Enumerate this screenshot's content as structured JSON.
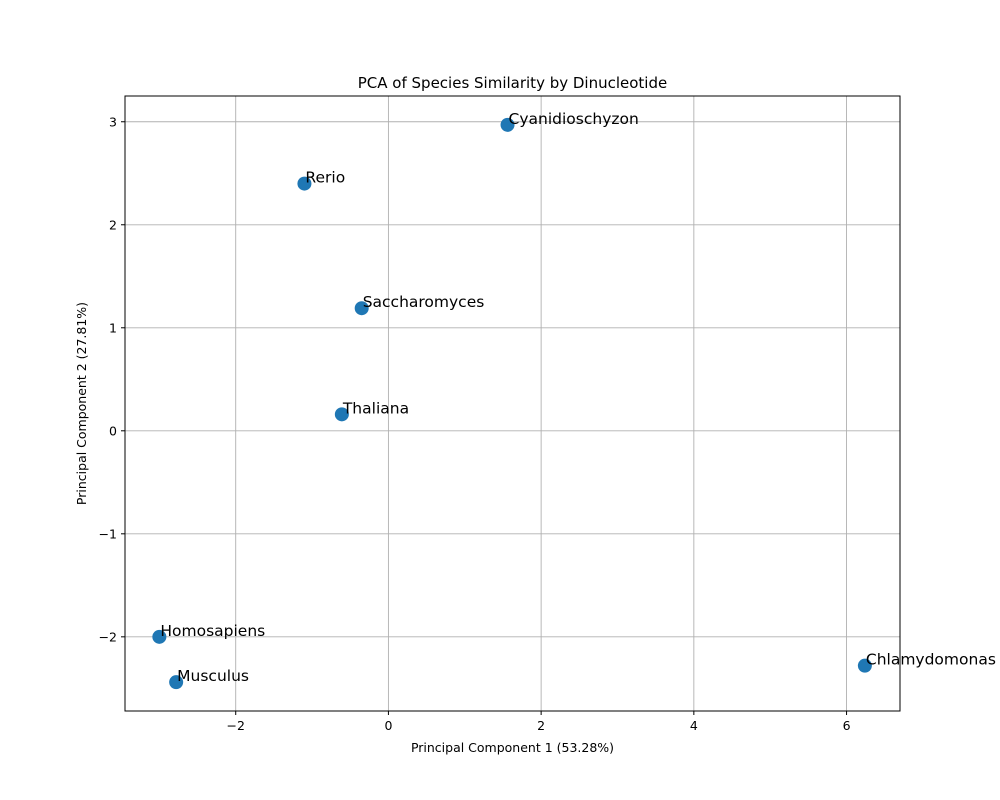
{
  "chart_data": {
    "type": "scatter",
    "title": "PCA of Species Similarity by Dinucleotide",
    "xlabel": "Principal Component 1 (53.28%)",
    "ylabel": "Principal Component 2 (27.81%)",
    "xlim": [
      -3.45,
      6.7
    ],
    "ylim": [
      -2.72,
      3.25
    ],
    "xticks": [
      -2,
      0,
      2,
      4,
      6
    ],
    "yticks": [
      -2,
      -1,
      0,
      1,
      2,
      3
    ],
    "grid": true,
    "point_color": "#1f77b4",
    "points": [
      {
        "label": "Cyanidioschyzon",
        "x": 1.56,
        "y": 2.97
      },
      {
        "label": "Rerio",
        "x": -1.1,
        "y": 2.4
      },
      {
        "label": "Saccharomyces",
        "x": -0.35,
        "y": 1.19
      },
      {
        "label": "Thaliana",
        "x": -0.61,
        "y": 0.16
      },
      {
        "label": "Homosapiens",
        "x": -3.0,
        "y": -2.0
      },
      {
        "label": "Musculus",
        "x": -2.78,
        "y": -2.44
      },
      {
        "label": "Chlamydomonas",
        "x": 6.24,
        "y": -2.28
      }
    ]
  }
}
